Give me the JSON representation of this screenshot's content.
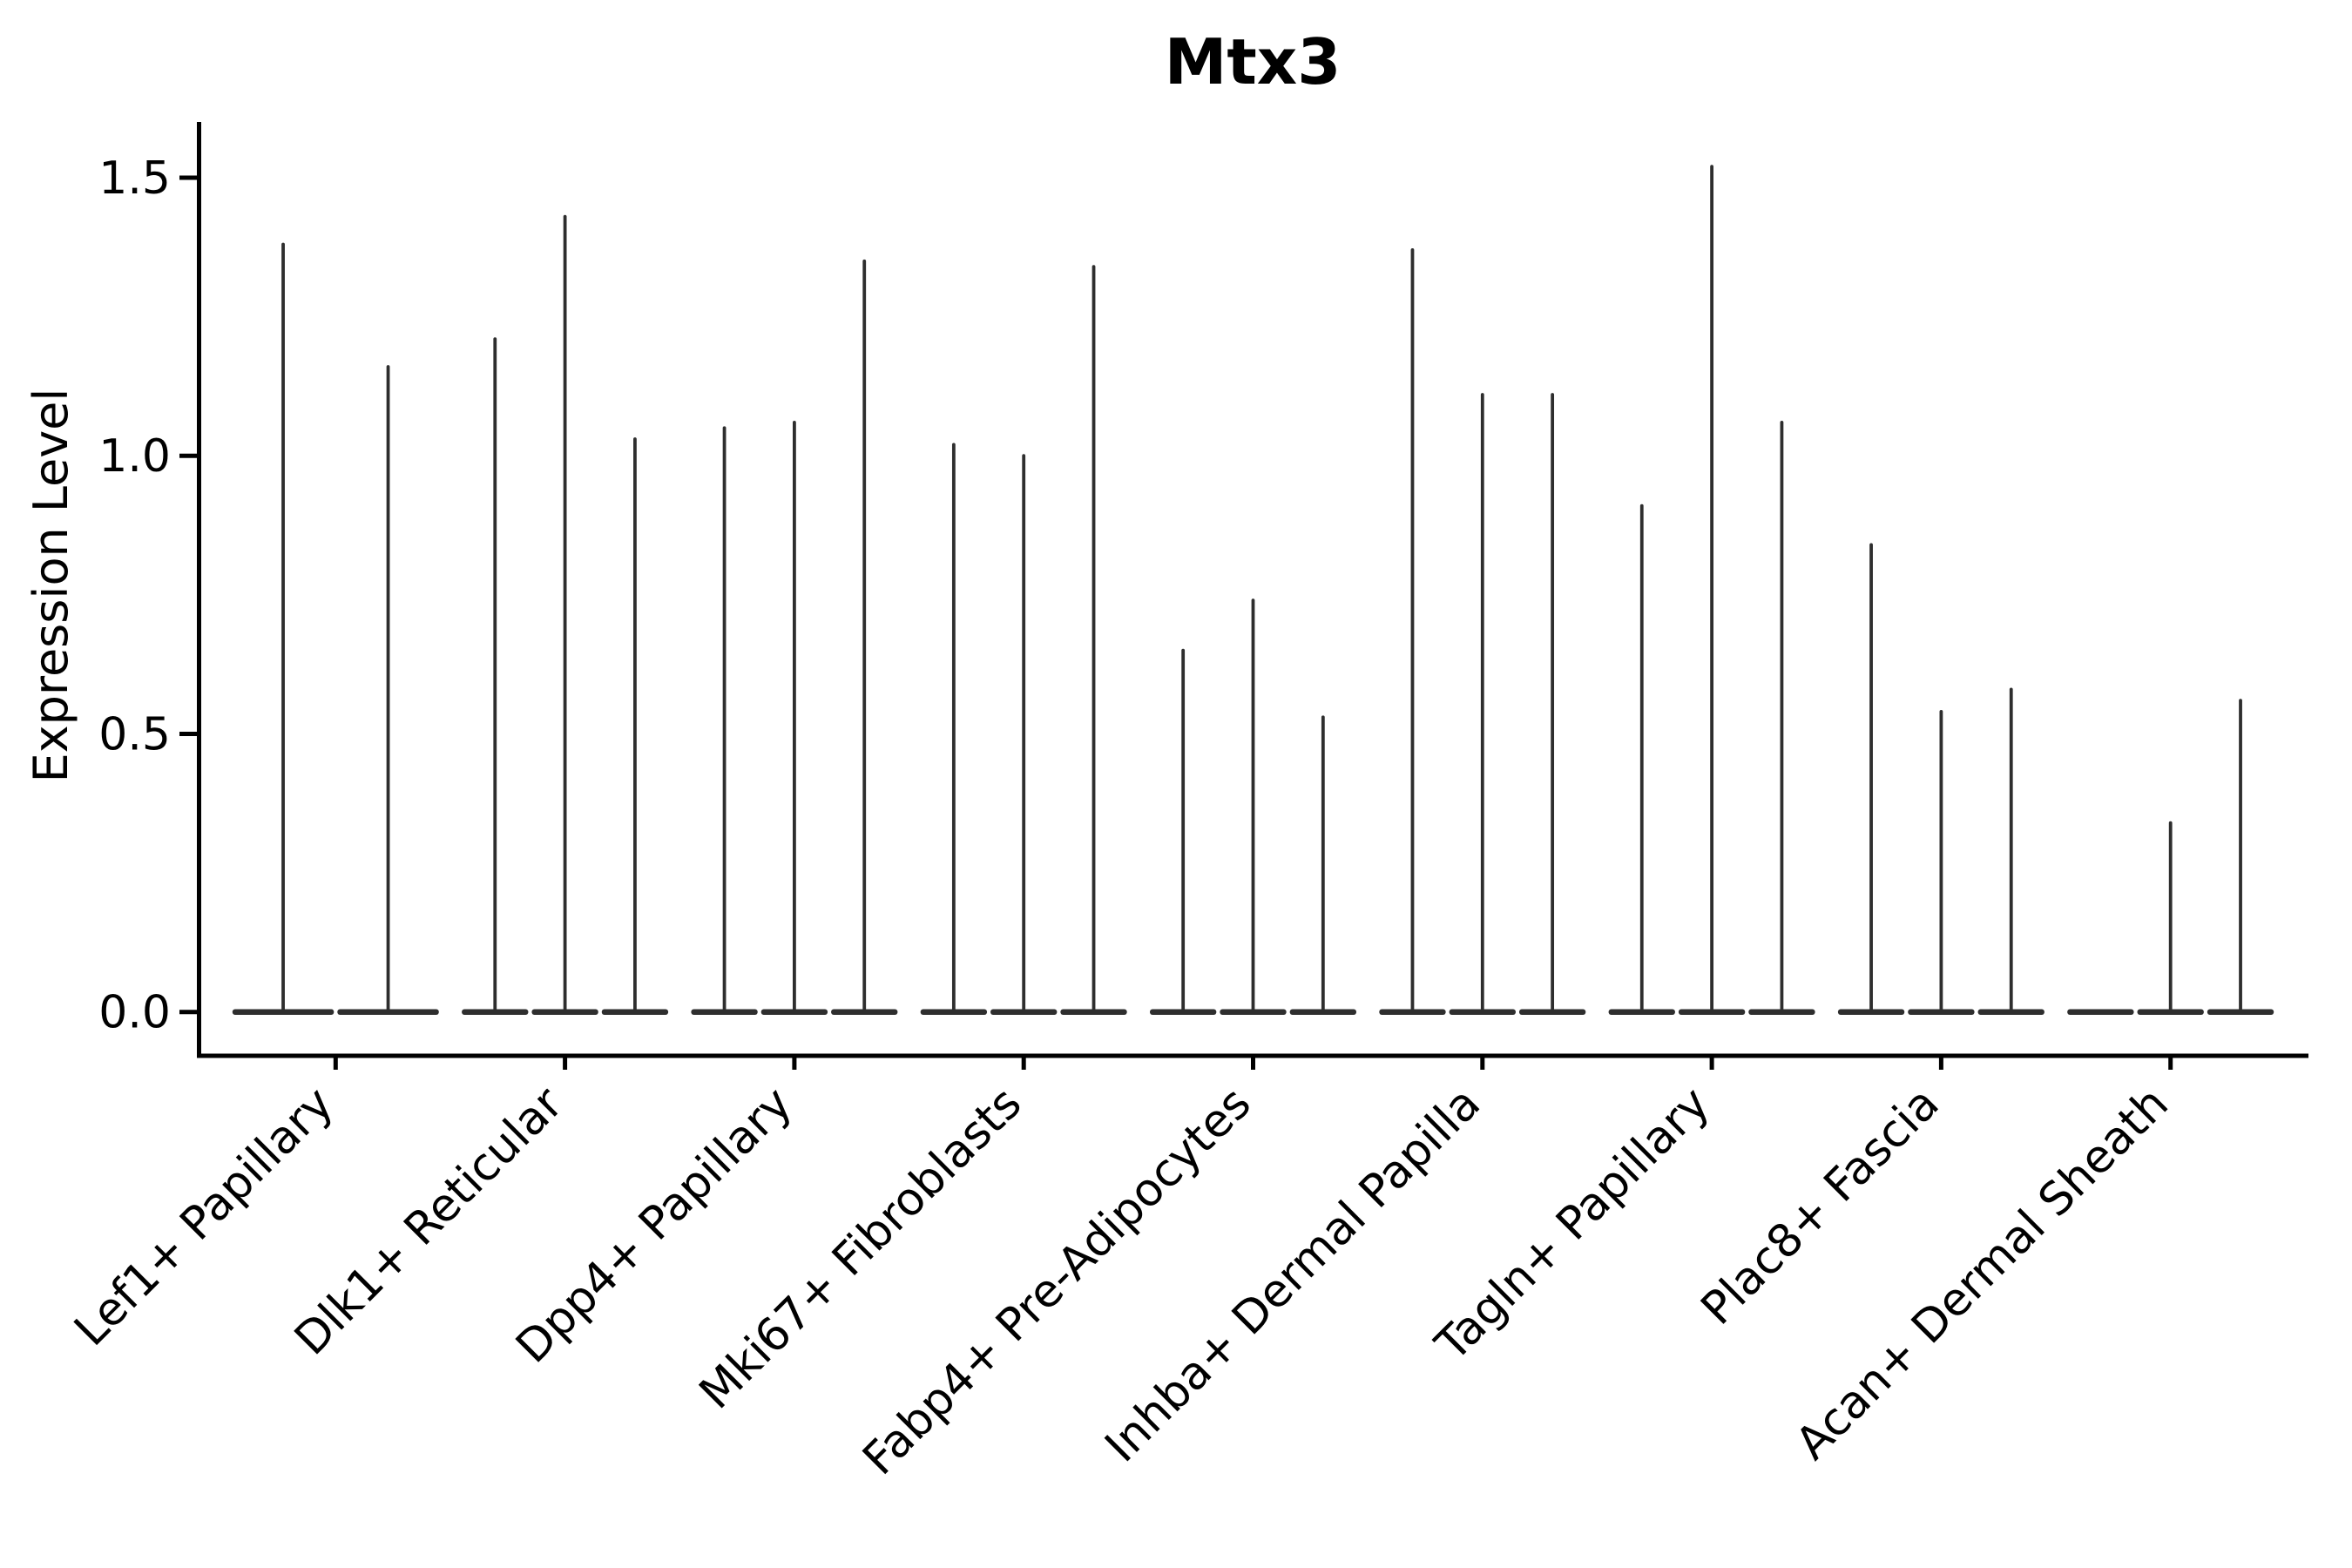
{
  "chart_data": {
    "type": "violin",
    "title": "Mtx3",
    "ylabel": "Expression Level",
    "xlabel": "",
    "ylim": [
      -0.08,
      1.6
    ],
    "grid": false,
    "legend": "none",
    "ytick_labels": [
      "0.0",
      "0.5",
      "1.0",
      "1.5"
    ],
    "ytick_values": [
      0.0,
      0.5,
      1.0,
      1.5
    ],
    "categories": [
      "Lef1+ Papillary",
      "Dlk1+ Reticular",
      "Dpp4+ Papillary",
      "Mki67+ Fibroblasts",
      "Fabp4+ Pre-Adipocytes",
      "Inhba+ Dermal Papilla",
      "Tagln+ Papillary",
      "Plac8+ Fascia",
      "Acan+ Dermal Sheath"
    ],
    "groups": [
      {
        "label": "Lef1+ Papillary",
        "spike_maxima": [
          1.38,
          1.16
        ]
      },
      {
        "label": "Dlk1+ Reticular",
        "spike_maxima": [
          1.21,
          1.43,
          1.03
        ]
      },
      {
        "label": "Dpp4+ Papillary",
        "spike_maxima": [
          1.05,
          1.06,
          1.35
        ]
      },
      {
        "label": "Mki67+ Fibroblasts",
        "spike_maxima": [
          1.02,
          1.0,
          1.34
        ]
      },
      {
        "label": "Fabp4+ Pre-Adipocytes",
        "spike_maxima": [
          0.65,
          0.74,
          0.53
        ]
      },
      {
        "label": "Inhba+ Dermal Papilla",
        "spike_maxima": [
          1.37,
          1.11,
          1.11
        ]
      },
      {
        "label": "Tagln+ Papillary",
        "spike_maxima": [
          0.91,
          1.52,
          1.06
        ]
      },
      {
        "label": "Plac8+ Fascia",
        "spike_maxima": [
          0.84,
          0.54,
          0.58
        ]
      },
      {
        "label": "Acan+ Dermal Sheath",
        "spike_maxima": [
          null,
          0.34,
          0.56
        ]
      }
    ],
    "colors": {
      "violin": "#2e2e2e",
      "axis": "#000000",
      "text": "#000000",
      "background": "#ffffff"
    }
  }
}
